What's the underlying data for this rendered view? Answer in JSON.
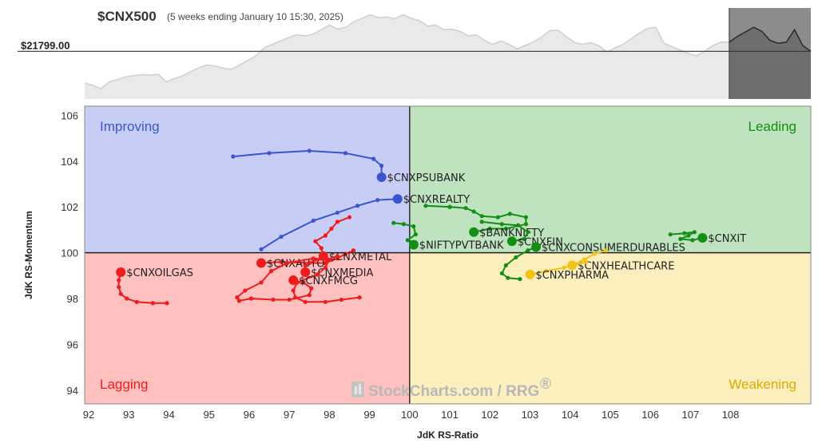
{
  "header": {
    "symbol": "$CNX500",
    "subtitle": "(5 weeks ending January 10 15:30, 2025)",
    "price_label": "$21799.00"
  },
  "watermark": "StockCharts.com / RRG",
  "watermark_reg": "®",
  "colors": {
    "improving": "#c8cdf5",
    "leading": "#bfe2bf",
    "lagging": "#ffc0c0",
    "weakening": "#fbefbd",
    "blue": "#3a55d0",
    "green": "#139013",
    "red": "#ee1c1c",
    "yellow": "#f5c218"
  },
  "chart_data": {
    "type": "scatter",
    "title": "$CNX500",
    "xlabel": "JdK RS-Ratio",
    "ylabel": "JdK RS-Momentum",
    "xlim": [
      91.9,
      110.0
    ],
    "ylim": [
      93.4,
      106.4
    ],
    "x_ticks": [
      "92",
      "93",
      "94",
      "95",
      "96",
      "97",
      "98",
      "99",
      "100",
      "101",
      "102",
      "103",
      "104",
      "105",
      "106",
      "107",
      "108"
    ],
    "x_tick_values": [
      92,
      93,
      94,
      95,
      96,
      97,
      98,
      99,
      100,
      101,
      102,
      103,
      104,
      105,
      106,
      107,
      108
    ],
    "y_ticks": [
      "94",
      "96",
      "98",
      "100",
      "102",
      "104",
      "106"
    ],
    "y_tick_values": [
      94,
      96,
      98,
      100,
      102,
      104,
      106
    ],
    "grid": false,
    "quadrants": {
      "improving": "Improving",
      "leading": "Leading",
      "lagging": "Lagging",
      "weakening": "Weakening"
    },
    "series": [
      {
        "name": "$CNXPSUBANK",
        "color": "blue",
        "points": [
          [
            95.6,
            104.2
          ],
          [
            96.5,
            104.35
          ],
          [
            97.5,
            104.45
          ],
          [
            98.4,
            104.35
          ],
          [
            99.1,
            104.1
          ],
          [
            99.3,
            103.8
          ],
          [
            99.3,
            103.3
          ]
        ]
      },
      {
        "name": "$CNXREALTY",
        "color": "blue",
        "points": [
          [
            96.3,
            100.15
          ],
          [
            96.8,
            100.7
          ],
          [
            97.6,
            101.4
          ],
          [
            98.2,
            101.75
          ],
          [
            98.7,
            102.05
          ],
          [
            99.2,
            102.3
          ],
          [
            99.7,
            102.35
          ]
        ]
      },
      {
        "name": "$NIFTYPVTBANK",
        "color": "green",
        "points": [
          [
            99.6,
            101.3
          ],
          [
            99.85,
            101.25
          ],
          [
            100.1,
            101.15
          ],
          [
            100.15,
            100.8
          ],
          [
            99.95,
            100.55
          ],
          [
            100.15,
            100.45
          ],
          [
            100.1,
            100.35
          ]
        ]
      },
      {
        "name": "$BANKNIFTY",
        "color": "green",
        "points": [
          [
            100.4,
            102.05
          ],
          [
            101,
            102.0
          ],
          [
            101.4,
            101.95
          ],
          [
            101.6,
            101.8
          ],
          [
            101.8,
            101.6
          ],
          [
            102.2,
            101.55
          ],
          [
            102.5,
            101.7
          ],
          [
            102.9,
            101.55
          ],
          [
            102.9,
            101.25
          ],
          [
            102.4,
            101.05
          ],
          [
            102.0,
            101.05
          ],
          [
            101.6,
            100.9
          ]
        ]
      },
      {
        "name": "$CNXFIN",
        "color": "green",
        "points": [
          [
            101.8,
            101.35
          ],
          [
            102.3,
            101.25
          ],
          [
            102.7,
            101.2
          ],
          [
            102.95,
            100.9
          ],
          [
            102.85,
            100.6
          ],
          [
            102.55,
            100.5
          ]
        ]
      },
      {
        "name": "$CNXCONSUMERDURABLES",
        "color": "green",
        "points": [
          [
            102.75,
            98.85
          ],
          [
            102.45,
            98.9
          ],
          [
            102.3,
            99.1
          ],
          [
            102.4,
            99.45
          ],
          [
            102.65,
            99.8
          ],
          [
            102.95,
            100.1
          ],
          [
            103.15,
            100.25
          ]
        ]
      },
      {
        "name": "$CNXIT",
        "color": "green",
        "points": [
          [
            106.5,
            100.8
          ],
          [
            106.85,
            100.85
          ],
          [
            107.1,
            100.9
          ],
          [
            106.95,
            100.75
          ],
          [
            106.75,
            100.6
          ],
          [
            107.05,
            100.55
          ],
          [
            107.3,
            100.65
          ]
        ]
      },
      {
        "name": "$CNXHEALTHCARE",
        "color": "yellow",
        "points": [
          [
            104.9,
            100.1
          ],
          [
            104.6,
            99.95
          ],
          [
            104.35,
            99.7
          ],
          [
            104.05,
            99.45
          ]
        ]
      },
      {
        "name": "$CNXPHARMA",
        "color": "yellow",
        "points": [
          [
            104.4,
            99.6
          ],
          [
            103.85,
            99.35
          ],
          [
            103.4,
            99.2
          ],
          [
            103.0,
            99.05
          ]
        ]
      },
      {
        "name": "$CNXOILGAS",
        "color": "red",
        "points": [
          [
            93.95,
            97.8
          ],
          [
            93.6,
            97.8
          ],
          [
            93.2,
            97.85
          ],
          [
            92.95,
            98.0
          ],
          [
            92.8,
            98.2
          ],
          [
            92.75,
            98.5
          ],
          [
            92.75,
            98.8
          ],
          [
            92.8,
            99.15
          ]
        ]
      },
      {
        "name": "$CNXAUTO",
        "color": "red",
        "points": [
          [
            98.6,
            100.1
          ],
          [
            98.4,
            99.95
          ],
          [
            98.2,
            99.75
          ],
          [
            97.9,
            99.55
          ],
          [
            97.5,
            99.55
          ],
          [
            96.8,
            99.6
          ],
          [
            96.3,
            99.55
          ]
        ]
      },
      {
        "name": "$CNXMETAL",
        "color": "red",
        "points": [
          [
            98.5,
            101.55
          ],
          [
            98.2,
            101.35
          ],
          [
            98.05,
            101.05
          ],
          [
            97.9,
            100.75
          ],
          [
            97.65,
            100.5
          ],
          [
            97.8,
            100.2
          ],
          [
            97.85,
            99.85
          ]
        ]
      },
      {
        "name": "$CNXMEDIA",
        "color": "red",
        "points": [
          [
            98.2,
            99.85
          ],
          [
            97.95,
            99.7
          ],
          [
            97.65,
            99.7
          ],
          [
            97.4,
            99.45
          ],
          [
            97.4,
            99.15
          ]
        ]
      },
      {
        "name": "$CNXFMCG",
        "color": "red",
        "points": [
          [
            98.75,
            98.05
          ],
          [
            98.3,
            97.95
          ],
          [
            97.9,
            97.85
          ],
          [
            97.4,
            97.85
          ],
          [
            97.15,
            98.05
          ],
          [
            97.1,
            98.35
          ],
          [
            97.2,
            98.7
          ],
          [
            97.7,
            99.05
          ],
          [
            97.9,
            99.35
          ],
          [
            98.0,
            99.7
          ],
          [
            97.6,
            99.75
          ],
          [
            96.95,
            99.55
          ],
          [
            96.55,
            99.2
          ],
          [
            96.3,
            98.7
          ],
          [
            95.9,
            98.35
          ],
          [
            95.7,
            98.05
          ],
          [
            95.75,
            97.9
          ],
          [
            96.05,
            98.0
          ],
          [
            96.6,
            97.95
          ],
          [
            97.0,
            97.95
          ],
          [
            97.5,
            98.15
          ],
          [
            97.55,
            98.45
          ],
          [
            97.35,
            98.7
          ],
          [
            97.1,
            98.8
          ]
        ]
      }
    ],
    "header_chart": {
      "price": 21799.0,
      "values": [
        21520,
        21500,
        21470,
        21530,
        21550,
        21575,
        21585,
        21595,
        21590,
        21598,
        21530,
        21560,
        21585,
        21620,
        21655,
        21680,
        21670,
        21650,
        21640,
        21680,
        21720,
        21760,
        21830,
        21860,
        21890,
        21920,
        21945,
        21935,
        21950,
        21990,
        22030,
        21995,
        22010,
        22060,
        22090,
        22120,
        22095,
        22100,
        22085,
        22120,
        22090,
        22070,
        22020,
        22030,
        21990,
        21995,
        21975,
        21935,
        21945,
        21895,
        21860,
        21890,
        21860,
        21820,
        21850,
        21880,
        21925,
        21980,
        21985,
        21930,
        21880,
        21860,
        21875,
        21850,
        21795,
        21830,
        21860,
        21910,
        21960,
        22000,
        22010,
        21870,
        21840,
        21810,
        21780,
        21760,
        21800,
        21850,
        21880,
        21880,
        21930,
        21970,
        22010,
        21975,
        21895,
        21870,
        21880,
        21990,
        21850,
        21800
      ],
      "shaded_from_index": 79
    }
  }
}
